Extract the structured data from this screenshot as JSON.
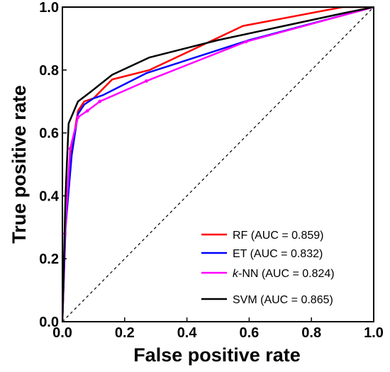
{
  "chart_data": {
    "type": "line",
    "title": "",
    "xlabel": "False positive rate",
    "ylabel": "True positive rate",
    "xlim": [
      0,
      1
    ],
    "ylim": [
      0,
      1
    ],
    "xticks": [
      "0.0",
      "0.2",
      "0.4",
      "0.6",
      "0.8",
      "1.0"
    ],
    "yticks": [
      "0.0",
      "0.2",
      "0.4",
      "0.6",
      "0.8",
      "1.0"
    ],
    "grid": false,
    "legend_position": "bottom-right",
    "reference_line": {
      "style": "dashed",
      "color": "#000000",
      "x": [
        0,
        1
      ],
      "y": [
        0,
        1
      ]
    },
    "series": [
      {
        "name": "RF (AUC  = 0.859)",
        "legend_prefix": "RF (AUC  = 0.859)",
        "legend_italic": "",
        "legend_suffix": "",
        "color": "#ff0000",
        "marker": false,
        "x": [
          0.0,
          0.01,
          0.03,
          0.05,
          0.07,
          0.1,
          0.16,
          0.28,
          0.58,
          0.9,
          1.0
        ],
        "y": [
          0.0,
          0.3,
          0.55,
          0.67,
          0.7,
          0.71,
          0.77,
          0.8,
          0.94,
          1.0,
          1.0
        ]
      },
      {
        "name": "ET (AUC = 0.832)",
        "legend_prefix": "ET (AUC = 0.832)",
        "legend_italic": "",
        "legend_suffix": "",
        "color": "#0000ff",
        "marker": false,
        "x": [
          0.0,
          0.01,
          0.03,
          0.05,
          0.07,
          0.1,
          0.13,
          0.27,
          0.6,
          1.0
        ],
        "y": [
          0.0,
          0.3,
          0.53,
          0.66,
          0.69,
          0.71,
          0.72,
          0.79,
          0.895,
          1.0
        ]
      },
      {
        "name": "k-NN (AUC = 0.824)",
        "legend_prefix": "",
        "legend_italic": "k",
        "legend_suffix": "-NN (AUC = 0.824)",
        "color": "#ff00ff",
        "marker": true,
        "x": [
          0.0,
          0.008,
          0.025,
          0.05,
          0.08,
          0.12,
          0.27,
          0.59,
          1.0
        ],
        "y": [
          0.0,
          0.28,
          0.55,
          0.65,
          0.67,
          0.7,
          0.765,
          0.89,
          1.0
        ]
      },
      {
        "name": "SVM (AUC = 0.865)",
        "legend_prefix": "SVM (AUC = 0.865)",
        "legend_italic": "",
        "legend_suffix": "",
        "color": "#000000",
        "marker": false,
        "x": [
          0.0,
          0.01,
          0.02,
          0.05,
          0.09,
          0.16,
          0.28,
          0.5,
          0.9,
          1.0
        ],
        "y": [
          0.0,
          0.4,
          0.63,
          0.7,
          0.73,
          0.785,
          0.84,
          0.895,
          0.98,
          1.0
        ]
      }
    ]
  }
}
